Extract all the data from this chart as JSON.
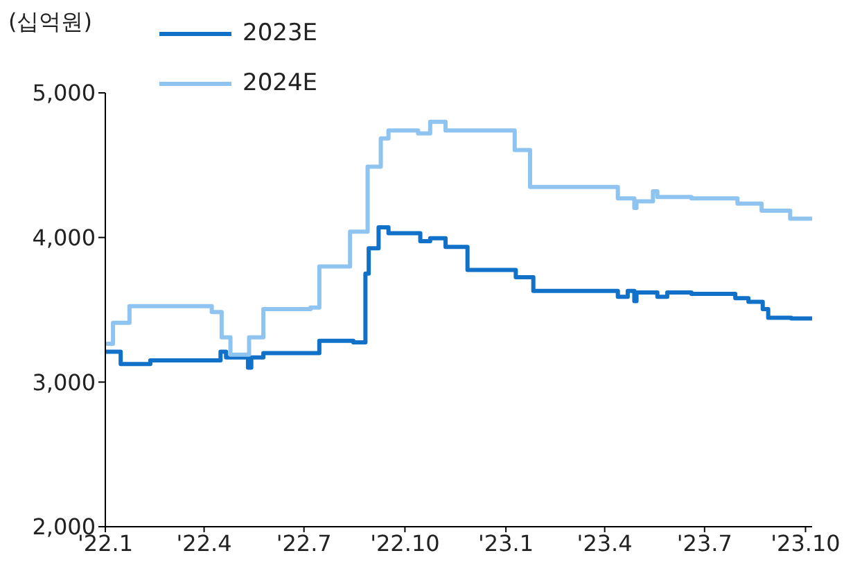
{
  "chart_data": {
    "type": "step",
    "ylabel": "(십억원)",
    "legend": "top left",
    "xlim": [
      "2022-01-01",
      "2023-10-07"
    ],
    "xticks": [
      {
        "value": "2022-01-01",
        "label": "'22.1"
      },
      {
        "value": "2022-04-01",
        "label": "'22.4"
      },
      {
        "value": "2022-07-01",
        "label": "'22.7"
      },
      {
        "value": "2022-10-01",
        "label": "'22.10"
      },
      {
        "value": "2023-01-01",
        "label": "'23.1"
      },
      {
        "value": "2023-04-01",
        "label": "'23.4"
      },
      {
        "value": "2023-07-01",
        "label": "'23.7"
      },
      {
        "value": "2023-10-01",
        "label": "'23.10"
      }
    ],
    "ylim": [
      2000,
      5000
    ],
    "yticks": [
      {
        "value": 2000,
        "label": "2,000"
      },
      {
        "value": 3000,
        "label": "3,000"
      },
      {
        "value": 4000,
        "label": "4,000"
      },
      {
        "value": 5000,
        "label": "5,000"
      }
    ],
    "series": [
      {
        "name": "2023E",
        "color": "#1170c8",
        "x": [
          "2022-01-01",
          "2022-01-15",
          "2022-02-11",
          "2022-04-16",
          "2022-04-21",
          "2022-05-11",
          "2022-05-14",
          "2022-05-25",
          "2022-07-15",
          "2022-08-15",
          "2022-08-26",
          "2022-08-29",
          "2022-09-07",
          "2022-09-16",
          "2022-10-15",
          "2022-10-24",
          "2022-11-07",
          "2022-11-27",
          "2023-01-10",
          "2023-01-26",
          "2023-04-13",
          "2023-04-22",
          "2023-04-28",
          "2023-04-30",
          "2023-05-19",
          "2023-05-28",
          "2023-06-19",
          "2023-07-29",
          "2023-08-10",
          "2023-08-23",
          "2023-08-28",
          "2023-09-18",
          "2023-10-07"
        ],
        "values": [
          3210,
          3125,
          3150,
          3210,
          3170,
          3100,
          3170,
          3200,
          3285,
          3275,
          3750,
          3925,
          4070,
          4030,
          3975,
          3995,
          3935,
          3775,
          3725,
          3630,
          3590,
          3630,
          3560,
          3620,
          3590,
          3620,
          3610,
          3580,
          3555,
          3505,
          3445,
          3440,
          3440
        ]
      },
      {
        "name": "2024E",
        "color": "#8fc3f0",
        "x": [
          "2022-01-01",
          "2022-01-08",
          "2022-01-23",
          "2022-04-08",
          "2022-04-17",
          "2022-04-25",
          "2022-05-12",
          "2022-05-25",
          "2022-07-07",
          "2022-07-15",
          "2022-08-12",
          "2022-08-28",
          "2022-09-09",
          "2022-09-16",
          "2022-10-13",
          "2022-10-24",
          "2022-11-07",
          "2023-01-09",
          "2023-01-23",
          "2023-04-13",
          "2023-04-28",
          "2023-04-30",
          "2023-05-15",
          "2023-05-19",
          "2023-06-19",
          "2023-07-31",
          "2023-08-22",
          "2023-09-17",
          "2023-10-07"
        ],
        "values": [
          3265,
          3410,
          3525,
          3485,
          3310,
          3190,
          3310,
          3505,
          3515,
          3800,
          4040,
          4490,
          4685,
          4740,
          4720,
          4800,
          4740,
          4605,
          4350,
          4270,
          4205,
          4250,
          4320,
          4280,
          4270,
          4235,
          4185,
          4130,
          4130
        ]
      }
    ]
  }
}
